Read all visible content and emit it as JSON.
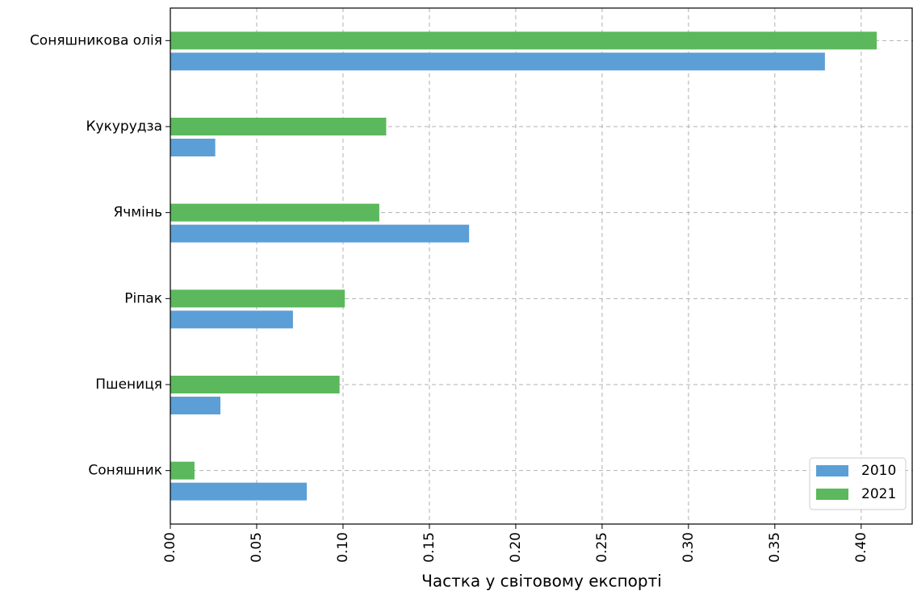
{
  "chart_data": {
    "type": "hbar",
    "xlabel": "Частка у світовому експорті",
    "categories": [
      "Соняшникова олія",
      "Кукурудза",
      "Ячмінь",
      "Ріпак",
      "Пшениця",
      "Соняшник"
    ],
    "series": [
      {
        "name": "2010",
        "color": "#5b9fd6",
        "values": [
          0.379,
          0.026,
          0.173,
          0.071,
          0.029,
          0.079
        ]
      },
      {
        "name": "2021",
        "color": "#5cb85c",
        "values": [
          0.409,
          0.125,
          0.121,
          0.101,
          0.098,
          0.014
        ]
      }
    ],
    "xlim": [
      0,
      0.43
    ],
    "xticks": [
      {
        "value": 0,
        "label": "0.00"
      },
      0.05,
      {
        "value": 0.1,
        "label": "0.10"
      },
      0.15,
      {
        "value": 0.2,
        "label": "0.20"
      },
      0.25,
      {
        "value": 0.3,
        "label": "0.30"
      },
      0.35,
      {
        "value": 0.4,
        "label": "0.40"
      }
    ],
    "grid": true,
    "legend": "lower right"
  }
}
